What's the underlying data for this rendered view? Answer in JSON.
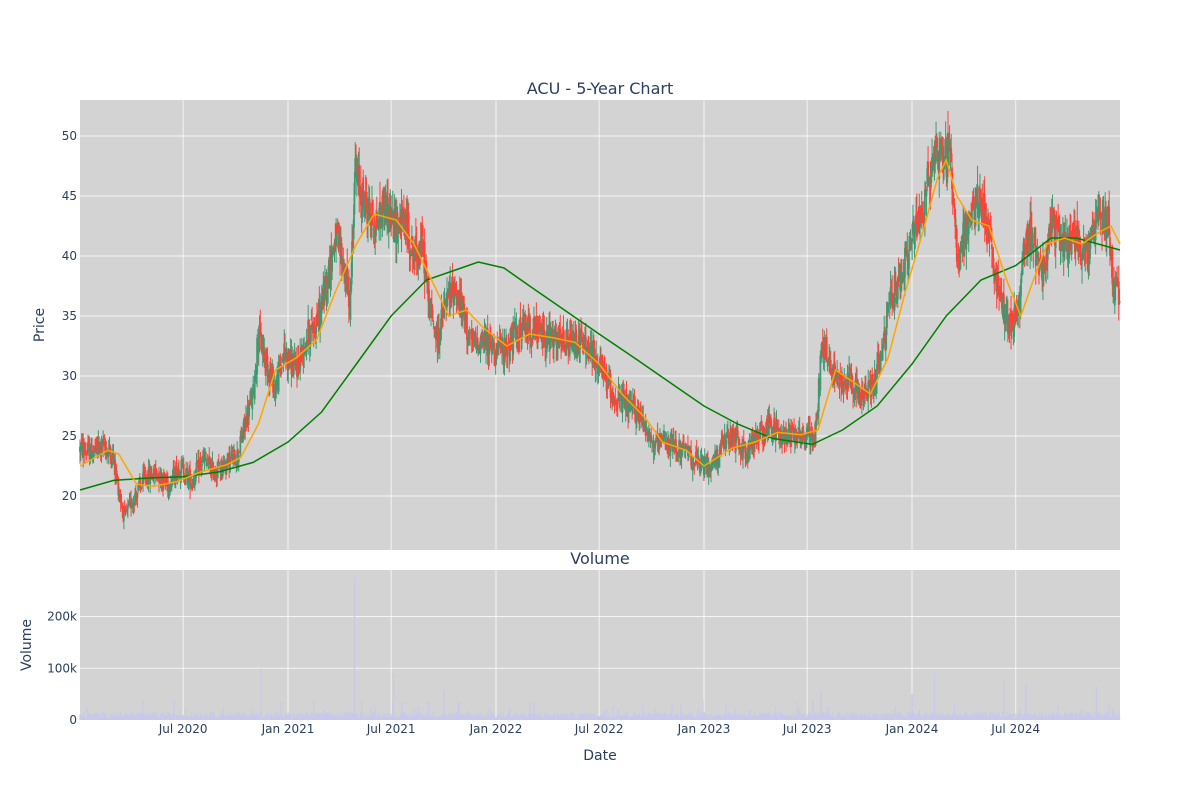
{
  "chart_data": [
    {
      "type": "candlestick",
      "title": "ACU - 5-Year Chart",
      "ylabel": "Price",
      "ylim": [
        15.5,
        53
      ],
      "yticks": [
        20,
        25,
        30,
        35,
        40,
        45,
        50
      ],
      "xlim": [
        "2020-01-02",
        "2024-12-31"
      ],
      "grid": true,
      "colors": {
        "background": "#d3d3d3",
        "increasing": "#3d9970",
        "decreasing": "#ff4136",
        "ma_short": "#ffa500",
        "ma_long": "#008000"
      },
      "price_path": [
        [
          "2020-01-02",
          24.0
        ],
        [
          "2020-01-20",
          23.6
        ],
        [
          "2020-02-10",
          24.2
        ],
        [
          "2020-02-28",
          23.4
        ],
        [
          "2020-03-12",
          20.0
        ],
        [
          "2020-03-20",
          18.2
        ],
        [
          "2020-04-05",
          19.8
        ],
        [
          "2020-04-25",
          21.5
        ],
        [
          "2020-05-15",
          22.0
        ],
        [
          "2020-06-05",
          21.0
        ],
        [
          "2020-06-25",
          22.5
        ],
        [
          "2020-07-15",
          21.2
        ],
        [
          "2020-08-05",
          23.0
        ],
        [
          "2020-08-25",
          22.0
        ],
        [
          "2020-09-15",
          22.8
        ],
        [
          "2020-10-05",
          23.4
        ],
        [
          "2020-10-20",
          26.5
        ],
        [
          "2020-11-01",
          28.5
        ],
        [
          "2020-11-10",
          33.5
        ],
        [
          "2020-11-25",
          31.0
        ],
        [
          "2020-12-10",
          29.0
        ],
        [
          "2020-12-25",
          32.0
        ],
        [
          "2021-01-15",
          30.5
        ],
        [
          "2021-02-05",
          33.5
        ],
        [
          "2021-02-25",
          35.0
        ],
        [
          "2021-03-10",
          38.0
        ],
        [
          "2021-03-25",
          41.5
        ],
        [
          "2021-04-05",
          40.0
        ],
        [
          "2021-04-20",
          36.0
        ],
        [
          "2021-04-28",
          47.0
        ],
        [
          "2021-05-10",
          45.0
        ],
        [
          "2021-05-20",
          44.0
        ],
        [
          "2021-06-05",
          42.5
        ],
        [
          "2021-06-20",
          44.5
        ],
        [
          "2021-07-05",
          42.5
        ],
        [
          "2021-07-25",
          43.0
        ],
        [
          "2021-08-10",
          40.0
        ],
        [
          "2021-08-25",
          41.0
        ],
        [
          "2021-09-05",
          36.0
        ],
        [
          "2021-09-20",
          33.0
        ],
        [
          "2021-10-05",
          36.0
        ],
        [
          "2021-10-20",
          37.5
        ],
        [
          "2021-11-05",
          35.0
        ],
        [
          "2021-11-20",
          32.5
        ],
        [
          "2021-12-05",
          33.0
        ],
        [
          "2021-12-25",
          32.5
        ],
        [
          "2022-01-15",
          32.0
        ],
        [
          "2022-02-05",
          33.5
        ],
        [
          "2022-02-25",
          34.0
        ],
        [
          "2022-03-20",
          33.5
        ],
        [
          "2022-04-10",
          33.0
        ],
        [
          "2022-05-05",
          32.5
        ],
        [
          "2022-05-25",
          33.0
        ],
        [
          "2022-06-15",
          32.0
        ],
        [
          "2022-07-05",
          30.5
        ],
        [
          "2022-07-25",
          28.5
        ],
        [
          "2022-08-15",
          27.5
        ],
        [
          "2022-09-05",
          27.0
        ],
        [
          "2022-09-20",
          26.0
        ],
        [
          "2022-10-05",
          24.0
        ],
        [
          "2022-10-25",
          24.5
        ],
        [
          "2022-11-15",
          24.0
        ],
        [
          "2022-12-05",
          23.5
        ],
        [
          "2022-12-25",
          22.5
        ],
        [
          "2023-01-15",
          22.5
        ],
        [
          "2023-02-05",
          24.5
        ],
        [
          "2023-02-25",
          24.8
        ],
        [
          "2023-03-15",
          23.5
        ],
        [
          "2023-04-05",
          25.0
        ],
        [
          "2023-04-25",
          26.0
        ],
        [
          "2023-05-15",
          25.0
        ],
        [
          "2023-06-05",
          25.5
        ],
        [
          "2023-06-25",
          25.0
        ],
        [
          "2023-07-15",
          25.0
        ],
        [
          "2023-07-28",
          33.0
        ],
        [
          "2023-08-10",
          31.0
        ],
        [
          "2023-08-25",
          29.5
        ],
        [
          "2023-09-15",
          30.0
        ],
        [
          "2023-10-05",
          28.0
        ],
        [
          "2023-10-25",
          29.5
        ],
        [
          "2023-11-10",
          32.0
        ],
        [
          "2023-11-25",
          36.5
        ],
        [
          "2023-12-15",
          38.5
        ],
        [
          "2024-01-05",
          42.0
        ],
        [
          "2024-01-25",
          45.0
        ],
        [
          "2024-02-10",
          49.0
        ],
        [
          "2024-02-25",
          48.5
        ],
        [
          "2024-03-10",
          48.0
        ],
        [
          "2024-03-20",
          40.0
        ],
        [
          "2024-04-05",
          42.0
        ],
        [
          "2024-04-20",
          44.0
        ],
        [
          "2024-05-05",
          44.5
        ],
        [
          "2024-05-20",
          40.0
        ],
        [
          "2024-06-05",
          36.0
        ],
        [
          "2024-06-20",
          34.5
        ],
        [
          "2024-07-05",
          35.0
        ],
        [
          "2024-07-15",
          40.0
        ],
        [
          "2024-07-28",
          42.0
        ],
        [
          "2024-08-15",
          39.0
        ],
        [
          "2024-09-05",
          42.5
        ],
        [
          "2024-09-25",
          41.0
        ],
        [
          "2024-10-15",
          41.5
        ],
        [
          "2024-11-05",
          40.0
        ],
        [
          "2024-11-20",
          43.5
        ],
        [
          "2024-12-10",
          43.0
        ],
        [
          "2024-12-20",
          37.5
        ],
        [
          "2024-12-31",
          36.5
        ]
      ],
      "ma_short": [
        [
          "2020-01-02",
          22.5
        ],
        [
          "2020-02-20",
          23.8
        ],
        [
          "2020-03-10",
          23.5
        ],
        [
          "2020-04-10",
          21.0
        ],
        [
          "2020-05-10",
          20.8
        ],
        [
          "2020-06-20",
          21.2
        ],
        [
          "2020-08-01",
          22.0
        ],
        [
          "2020-09-15",
          22.6
        ],
        [
          "2020-10-10",
          23.2
        ],
        [
          "2020-11-10",
          26.0
        ],
        [
          "2020-12-10",
          30.5
        ],
        [
          "2021-01-15",
          31.5
        ],
        [
          "2021-02-20",
          33.0
        ],
        [
          "2021-03-25",
          37.0
        ],
        [
          "2021-05-01",
          41.0
        ],
        [
          "2021-06-01",
          43.5
        ],
        [
          "2021-07-10",
          43.0
        ],
        [
          "2021-08-10",
          41.0
        ],
        [
          "2021-09-10",
          38.0
        ],
        [
          "2021-10-10",
          35.0
        ],
        [
          "2021-11-10",
          35.5
        ],
        [
          "2021-12-10",
          34.0
        ],
        [
          "2022-01-20",
          32.5
        ],
        [
          "2022-03-01",
          33.5
        ],
        [
          "2022-04-10",
          33.2
        ],
        [
          "2022-05-20",
          32.8
        ],
        [
          "2022-07-01",
          31.0
        ],
        [
          "2022-08-10",
          28.5
        ],
        [
          "2022-09-20",
          26.5
        ],
        [
          "2022-10-20",
          24.5
        ],
        [
          "2022-12-01",
          23.8
        ],
        [
          "2023-01-01",
          22.5
        ],
        [
          "2023-02-20",
          24.0
        ],
        [
          "2023-04-01",
          24.5
        ],
        [
          "2023-05-10",
          25.3
        ],
        [
          "2023-06-20",
          25.1
        ],
        [
          "2023-07-20",
          25.5
        ],
        [
          "2023-08-20",
          30.5
        ],
        [
          "2023-09-20",
          29.5
        ],
        [
          "2023-10-20",
          28.5
        ],
        [
          "2023-11-20",
          31.5
        ],
        [
          "2023-12-20",
          37.0
        ],
        [
          "2024-01-20",
          42.0
        ],
        [
          "2024-02-15",
          46.5
        ],
        [
          "2024-03-01",
          48.0
        ],
        [
          "2024-03-20",
          45.0
        ],
        [
          "2024-04-15",
          43.0
        ],
        [
          "2024-05-15",
          42.5
        ],
        [
          "2024-06-15",
          38.0
        ],
        [
          "2024-07-10",
          35.0
        ],
        [
          "2024-08-01",
          38.0
        ],
        [
          "2024-08-25",
          41.0
        ],
        [
          "2024-09-25",
          41.5
        ],
        [
          "2024-10-25",
          41.0
        ],
        [
          "2024-11-25",
          42.0
        ],
        [
          "2024-12-15",
          42.5
        ],
        [
          "2024-12-31",
          41.0
        ]
      ],
      "ma_long": [
        [
          "2020-01-02",
          20.5
        ],
        [
          "2020-03-01",
          21.3
        ],
        [
          "2020-05-01",
          21.5
        ],
        [
          "2020-07-01",
          21.6
        ],
        [
          "2020-09-01",
          22.0
        ],
        [
          "2020-11-01",
          22.8
        ],
        [
          "2021-01-01",
          24.5
        ],
        [
          "2021-03-01",
          27.0
        ],
        [
          "2021-05-01",
          31.0
        ],
        [
          "2021-07-01",
          35.0
        ],
        [
          "2021-09-01",
          38.0
        ],
        [
          "2021-11-01",
          39.0
        ],
        [
          "2021-12-01",
          39.5
        ],
        [
          "2022-01-15",
          39.0
        ],
        [
          "2022-03-01",
          37.5
        ],
        [
          "2022-05-01",
          35.5
        ],
        [
          "2022-07-01",
          33.5
        ],
        [
          "2022-09-01",
          31.5
        ],
        [
          "2022-11-01",
          29.5
        ],
        [
          "2023-01-01",
          27.5
        ],
        [
          "2023-03-01",
          26.0
        ],
        [
          "2023-05-01",
          24.8
        ],
        [
          "2023-07-10",
          24.3
        ],
        [
          "2023-09-01",
          25.5
        ],
        [
          "2023-11-01",
          27.5
        ],
        [
          "2024-01-01",
          31.0
        ],
        [
          "2024-03-01",
          35.0
        ],
        [
          "2024-05-01",
          38.0
        ],
        [
          "2024-07-01",
          39.2
        ],
        [
          "2024-09-01",
          41.5
        ],
        [
          "2024-10-15",
          41.5
        ],
        [
          "2024-12-31",
          40.5
        ]
      ]
    },
    {
      "type": "bar",
      "title": "Volume",
      "xlabel": "Date",
      "ylabel": "Volume",
      "ylim": [
        0,
        290000
      ],
      "yticks": [
        0,
        100000,
        200000
      ],
      "ytick_labels": [
        "0",
        "100k",
        "200k"
      ],
      "xticks": [
        "2020-07-01",
        "2021-01-01",
        "2021-07-01",
        "2022-01-01",
        "2022-07-01",
        "2023-01-01",
        "2023-07-01",
        "2024-01-01",
        "2024-07-01"
      ],
      "xtick_labels": [
        "Jul 2020",
        "Jan 2021",
        "Jul 2021",
        "Jan 2022",
        "Jul 2022",
        "Jan 2023",
        "Jul 2023",
        "Jan 2024",
        "Jul 2024"
      ],
      "colors": {
        "bar": "#c8c8ec",
        "background": "#d3d3d3"
      },
      "baseline": 9000,
      "spikes": [
        [
          "2020-06-15",
          40000
        ],
        [
          "2020-11-15",
          100000
        ],
        [
          "2020-12-20",
          35000
        ],
        [
          "2021-02-15",
          40000
        ],
        [
          "2021-04-28",
          275000
        ],
        [
          "2021-05-10",
          40000
        ],
        [
          "2021-07-05",
          90000
        ],
        [
          "2021-10-01",
          60000
        ],
        [
          "2022-09-15",
          30000
        ],
        [
          "2023-07-25",
          55000
        ],
        [
          "2024-02-10",
          90000
        ],
        [
          "2024-01-01",
          50000
        ],
        [
          "2024-06-10",
          75000
        ],
        [
          "2024-07-20",
          70000
        ],
        [
          "2024-11-20",
          65000
        ]
      ]
    }
  ]
}
